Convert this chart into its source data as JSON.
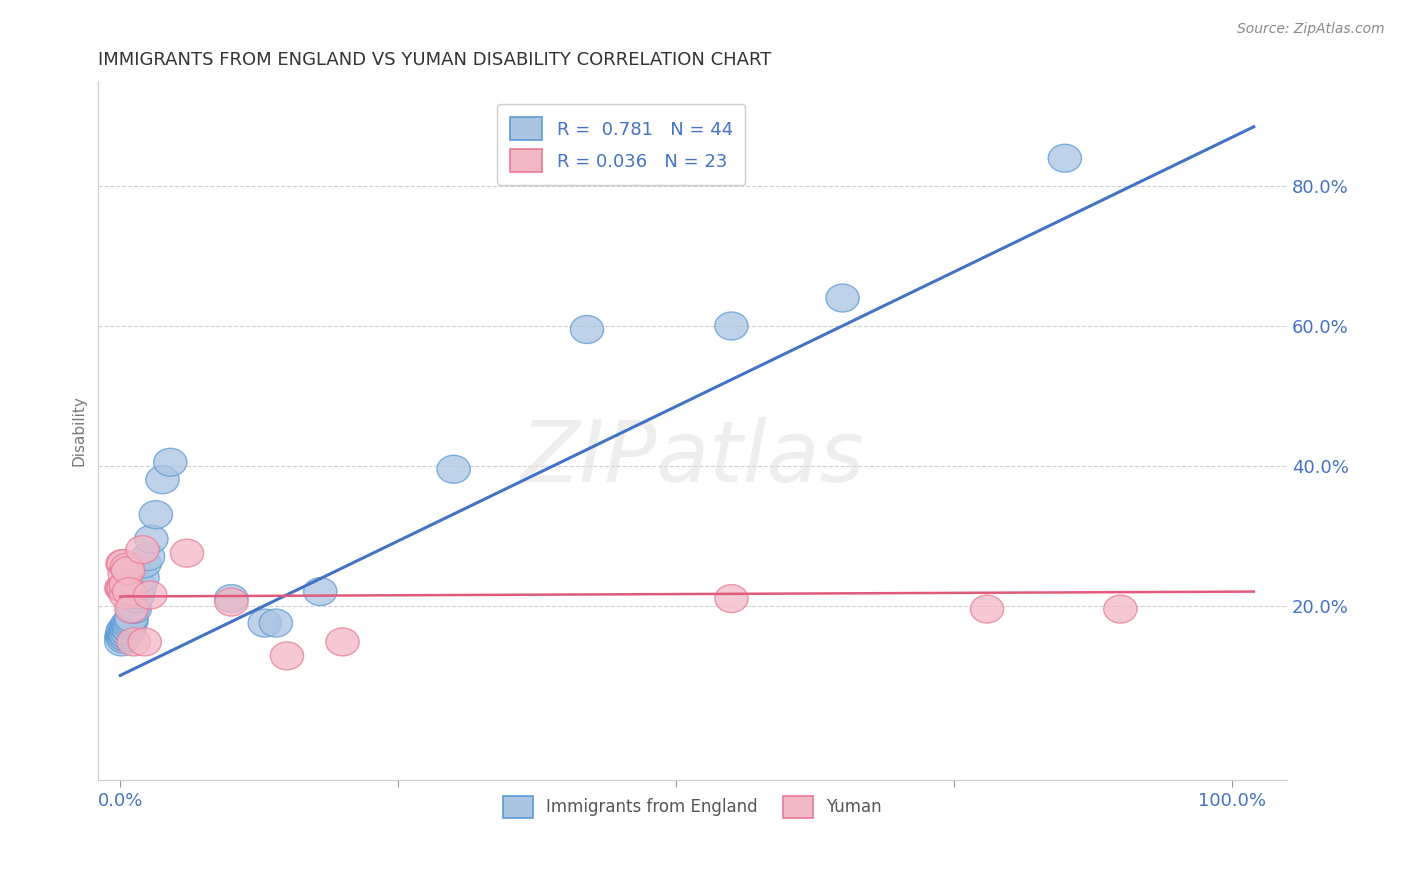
{
  "title": "IMMIGRANTS FROM ENGLAND VS YUMAN DISABILITY CORRELATION CHART",
  "source": "Source: ZipAtlas.com",
  "ylabel": "Disability",
  "xlim": [
    -0.02,
    1.05
  ],
  "ylim": [
    -0.05,
    0.95
  ],
  "ytick_values": [
    0.2,
    0.4,
    0.6,
    0.8
  ],
  "ytick_labels": [
    "20.0%",
    "40.0%",
    "60.0%",
    "80.0%"
  ],
  "xtick_values": [
    0.0,
    0.25,
    0.5,
    0.75,
    1.0
  ],
  "xtick_labels": [
    "0.0%",
    "",
    "",
    "",
    "100.0%"
  ],
  "blue_R": 0.781,
  "blue_N": 44,
  "pink_R": 0.036,
  "pink_N": 23,
  "blue_fill": "#aac4e2",
  "pink_fill": "#f2b8c6",
  "blue_edge": "#5b9bd5",
  "pink_edge": "#e87a99",
  "blue_line": "#4472c4",
  "pink_line": "#e05a7a",
  "legend_blue_label": "Immigrants from England",
  "legend_pink_label": "Yuman",
  "watermark": "ZIPatlas",
  "blue_points": [
    [
      0.001,
      0.155
    ],
    [
      0.001,
      0.148
    ],
    [
      0.002,
      0.158
    ],
    [
      0.002,
      0.163
    ],
    [
      0.003,
      0.152
    ],
    [
      0.003,
      0.16
    ],
    [
      0.003,
      0.165
    ],
    [
      0.004,
      0.155
    ],
    [
      0.004,
      0.16
    ],
    [
      0.005,
      0.165
    ],
    [
      0.005,
      0.17
    ],
    [
      0.005,
      0.158
    ],
    [
      0.006,
      0.162
    ],
    [
      0.006,
      0.168
    ],
    [
      0.007,
      0.17
    ],
    [
      0.007,
      0.175
    ],
    [
      0.008,
      0.165
    ],
    [
      0.008,
      0.172
    ],
    [
      0.009,
      0.175
    ],
    [
      0.01,
      0.178
    ],
    [
      0.01,
      0.182
    ],
    [
      0.011,
      0.195
    ],
    [
      0.012,
      0.2
    ],
    [
      0.013,
      0.195
    ],
    [
      0.014,
      0.21
    ],
    [
      0.015,
      0.22
    ],
    [
      0.016,
      0.215
    ],
    [
      0.018,
      0.228
    ],
    [
      0.02,
      0.24
    ],
    [
      0.022,
      0.26
    ],
    [
      0.025,
      0.27
    ],
    [
      0.028,
      0.295
    ],
    [
      0.032,
      0.33
    ],
    [
      0.038,
      0.38
    ],
    [
      0.045,
      0.405
    ],
    [
      0.1,
      0.21
    ],
    [
      0.13,
      0.175
    ],
    [
      0.14,
      0.175
    ],
    [
      0.18,
      0.22
    ],
    [
      0.3,
      0.395
    ],
    [
      0.42,
      0.595
    ],
    [
      0.55,
      0.6
    ],
    [
      0.85,
      0.84
    ],
    [
      0.65,
      0.64
    ]
  ],
  "pink_points": [
    [
      0.001,
      0.225
    ],
    [
      0.002,
      0.26
    ],
    [
      0.002,
      0.225
    ],
    [
      0.003,
      0.26
    ],
    [
      0.003,
      0.225
    ],
    [
      0.004,
      0.245
    ],
    [
      0.005,
      0.215
    ],
    [
      0.005,
      0.23
    ],
    [
      0.006,
      0.255
    ],
    [
      0.007,
      0.25
    ],
    [
      0.008,
      0.22
    ],
    [
      0.01,
      0.195
    ],
    [
      0.012,
      0.148
    ],
    [
      0.02,
      0.28
    ],
    [
      0.022,
      0.148
    ],
    [
      0.027,
      0.215
    ],
    [
      0.06,
      0.275
    ],
    [
      0.1,
      0.205
    ],
    [
      0.15,
      0.128
    ],
    [
      0.2,
      0.148
    ],
    [
      0.55,
      0.21
    ],
    [
      0.78,
      0.195
    ],
    [
      0.9,
      0.195
    ]
  ],
  "blue_trend_x": [
    0.0,
    1.02
  ],
  "blue_trend_y": [
    0.1,
    0.885
  ],
  "pink_trend_x": [
    0.0,
    1.02
  ],
  "pink_trend_y": [
    0.213,
    0.22
  ],
  "grid_color": "#d0d0d0",
  "spine_color": "#cccccc",
  "tick_color": "#999999",
  "label_color": "#4472c4",
  "title_color": "#333333",
  "ylabel_color": "#777777"
}
